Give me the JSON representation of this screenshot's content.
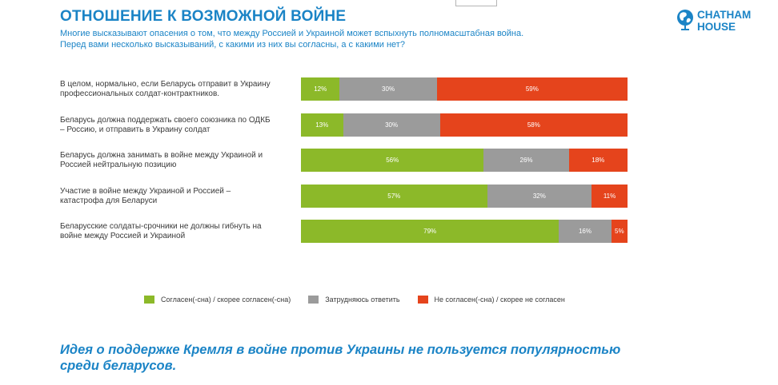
{
  "header": {
    "title": "ОТНОШЕНИЕ К ВОЗМОЖНОЙ ВОЙНЕ",
    "subtitle_lines": [
      "Многие высказывают опасения о том, что между Россией и Украиной может вспыхнуть полномасштабная война.",
      "Перед вами несколько высказываний, с какими из них вы согласны, а с какими нет?"
    ]
  },
  "logo": {
    "line1": "CHATHAM",
    "line2": "HOUSE",
    "icon": "globe-icon"
  },
  "chart_data": {
    "type": "bar",
    "orientation": "horizontal",
    "stacked": true,
    "categories": [
      [
        "В целом, нормально, если Беларусь отправит в Украину",
        "профессиональных солдат-контрактников."
      ],
      [
        "Беларусь должна поддержать своего союзника по ОДКБ",
        "– Россию, и отправить в Украину солдат"
      ],
      [
        "Беларусь должна занимать в войне между Украиной и",
        "Россией нейтральную позицию"
      ],
      [
        "Участие в войне между Украиной и Россией –",
        "катастрофа для Беларуси"
      ],
      [
        "Беларусские солдаты-срочники не должны гибнуть на",
        "войне между Россией и Украиной"
      ]
    ],
    "series": [
      {
        "name": "Согласен(-сна) / скорее согласен(-сна)",
        "color": "#8cb929",
        "values": [
          12,
          13,
          56,
          57,
          79
        ]
      },
      {
        "name": "Затрудняюсь ответить",
        "color": "#9b9b9b",
        "values": [
          30,
          30,
          26,
          32,
          16
        ]
      },
      {
        "name": "Не согласен(-сна) / скорее не согласен",
        "color": "#e5441c",
        "values": [
          59,
          58,
          18,
          11,
          5
        ]
      }
    ],
    "value_suffix": "%",
    "legend_position": "bottom",
    "grid": false
  },
  "conclusion": {
    "lines": [
      "Идея о поддержке Кремля в войне против Украины не пользуется популярностью",
      "среди беларусов."
    ]
  }
}
